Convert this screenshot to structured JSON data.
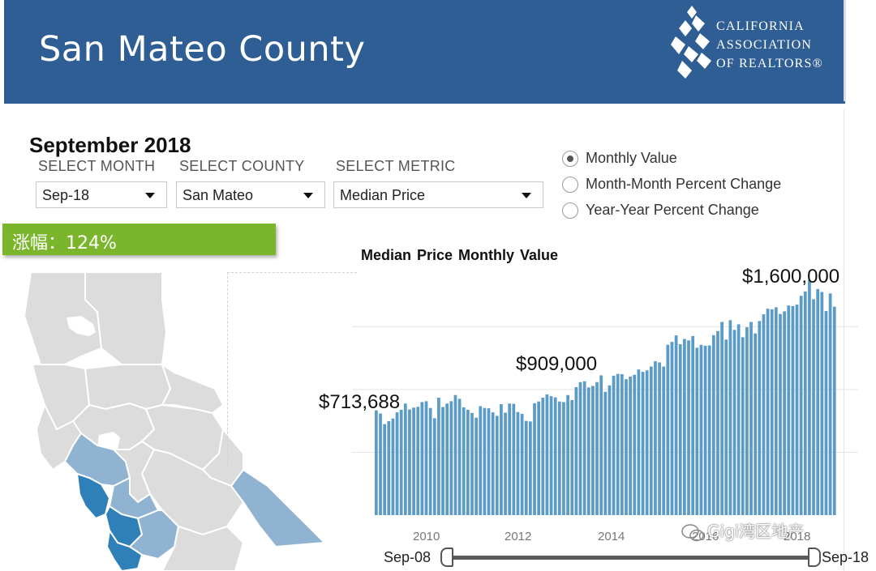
{
  "header": {
    "title": "San Mateo County",
    "logo_lines": [
      "CALIFORNIA",
      "ASSOCIATION",
      "OF REALTORS®"
    ]
  },
  "heading": {
    "period": "September 2018"
  },
  "selectors": {
    "month": {
      "label": "SELECT MONTH",
      "value": "Sep-18"
    },
    "county": {
      "label": "SELECT COUNTY",
      "value": "San Mateo"
    },
    "metric": {
      "label": "SELECT METRIC",
      "value": "Median Price"
    }
  },
  "view_options": [
    {
      "label": "Monthly Value",
      "selected": true
    },
    {
      "label": "Month-Month Percent Change",
      "selected": false
    },
    {
      "label": "Year-Year Percent Change",
      "selected": false
    }
  ],
  "badge": {
    "text": "涨幅：124%"
  },
  "chart_data": {
    "type": "bar",
    "title": "Median Price  Monthly Value",
    "xlabel": "",
    "ylabel": "",
    "ylim": [
      0,
      1600000
    ],
    "start": "Sep-08",
    "end": "Sep-18",
    "year_ticks": [
      "2010",
      "2012",
      "2014",
      "2016",
      "2018"
    ],
    "callouts": {
      "first": "$713,688",
      "mid": "$909,000",
      "max": "$1,600,000"
    },
    "values": [
      713688,
      692000,
      620000,
      640000,
      658000,
      700000,
      718000,
      760000,
      720000,
      732000,
      738000,
      770000,
      776000,
      730000,
      660000,
      800000,
      736000,
      760000,
      776000,
      818000,
      792000,
      734000,
      718000,
      696000,
      664000,
      742000,
      730000,
      728000,
      700000,
      676000,
      756000,
      698000,
      760000,
      758000,
      702000,
      690000,
      642000,
      638000,
      762000,
      774000,
      800000,
      822000,
      810000,
      802000,
      774000,
      770000,
      818000,
      784000,
      872000,
      906000,
      912000,
      870000,
      880000,
      906000,
      952000,
      840000,
      884000,
      950000,
      962000,
      960000,
      926000,
      944000,
      956000,
      992000,
      976000,
      986000,
      1012000,
      1048000,
      1040000,
      1012000,
      1160000,
      1180000,
      1224000,
      1164000,
      1200000,
      1190000,
      1220000,
      1140000,
      1160000,
      1154000,
      1156000,
      1226000,
      1254000,
      1316000,
      1196000,
      1328000,
      1262000,
      1300000,
      1212000,
      1280000,
      1316000,
      1238000,
      1322000,
      1368000,
      1406000,
      1402000,
      1416000,
      1370000,
      1388000,
      1428000,
      1424000,
      1434000,
      1494000,
      1524000,
      1600000,
      1470000,
      1540000,
      1520000,
      1390000,
      1510000,
      1420000
    ],
    "bar_color": "#5b9bc7"
  },
  "slider": {
    "left_label": "Sep-08",
    "right_label": "Sep-18"
  },
  "watermark": {
    "text": "Gigi湾区地产"
  },
  "colors": {
    "header_bg": "#2e5e93",
    "badge_bg": "#7ab52b",
    "bar": "#5b9bc7",
    "map_highlight": "#2f7fb8",
    "map_light": "#8fb3d0",
    "map_gray": "#dcdcdc"
  }
}
